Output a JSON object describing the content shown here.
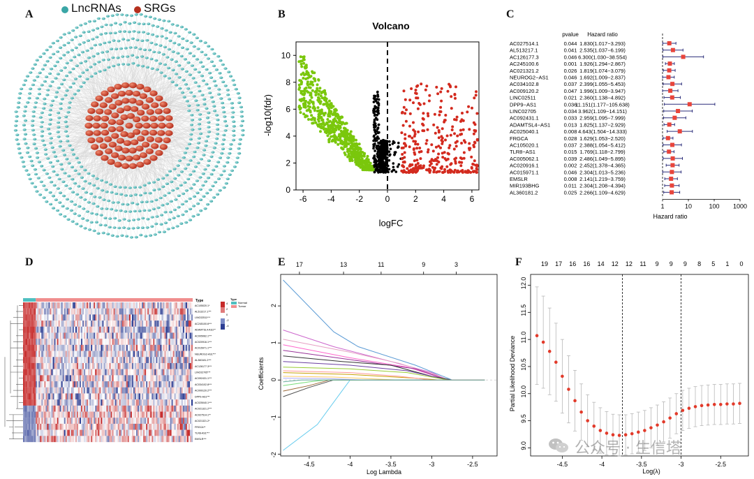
{
  "panel_labels": {
    "a": "A",
    "b": "B",
    "c": "C",
    "d": "D",
    "e": "E",
    "f": "F"
  },
  "colors": {
    "lnc": "#3aa6a6",
    "srg": "#b5301e",
    "green": "#7ac70c",
    "red": "#d32a1e",
    "black": "#000000",
    "hr_box": "#e8453c",
    "hr_line": "#2b2d7a",
    "cv_point": "#e23a2a",
    "cv_err": "#b8b8b8",
    "heat_red": "#c62b2b",
    "heat_blue": "#2d3e93",
    "normal": "#4fbfc0",
    "tumor": "#f08e8e"
  },
  "network": {
    "legend": [
      {
        "label": "LncRNAs",
        "color": "#3aa6a6"
      },
      {
        "label": "SRGs",
        "color": "#b5301e"
      }
    ]
  },
  "chart_data": [
    {
      "id": "B",
      "type": "scatter",
      "title": "Volcano",
      "xlabel": "logFC",
      "ylabel": "-log10(fdr)",
      "xlim": [
        -6.5,
        6.5
      ],
      "ylim": [
        0,
        11
      ],
      "xticks": [
        -6,
        -4,
        -2,
        0,
        2,
        4,
        6
      ],
      "yticks": [
        0,
        2,
        4,
        6,
        8,
        10
      ],
      "threshold_x": 0,
      "series": [
        {
          "group": "down",
          "color": "#7ac70c",
          "x_range": [
            -6.3,
            -1.0
          ],
          "y_range": [
            1.5,
            9.9
          ],
          "count": 750
        },
        {
          "group": "not_significant",
          "color": "#000000",
          "x_range": [
            -1.3,
            1.2
          ],
          "y_range": [
            1.3,
            7.5
          ],
          "count": 380
        },
        {
          "group": "up",
          "color": "#d32a1e",
          "x_range": [
            1.0,
            6.4
          ],
          "y_range": [
            1.3,
            7.9
          ],
          "count": 330
        }
      ]
    },
    {
      "id": "C",
      "type": "forest",
      "col_headers": {
        "pvalue": "pvalue",
        "hr": "Hazard ratio"
      },
      "xlabel": "Hazard ratio",
      "xscale": "log",
      "xlim": [
        0.1,
        1000
      ],
      "xticks": [
        1,
        10,
        100,
        1000
      ],
      "ref_line": 1,
      "rows": [
        {
          "gene": "AC027514.1",
          "p": "0.044",
          "hr_text": "1.830(1.017−3.293)",
          "hr": 1.83,
          "lo": 1.017,
          "hi": 3.293
        },
        {
          "gene": "AL513217.1",
          "p": "0.041",
          "hr_text": "2.535(1.037−6.199)",
          "hr": 2.535,
          "lo": 1.037,
          "hi": 6.199
        },
        {
          "gene": "AC126177.3",
          "p": "0.046",
          "hr_text": "6.300(1.030−38.554)",
          "hr": 6.3,
          "lo": 1.03,
          "hi": 38.554
        },
        {
          "gene": "AC245100.6",
          "p": "0.001",
          "hr_text": "1.926(1.294−2.867)",
          "hr": 1.926,
          "lo": 1.294,
          "hi": 2.867
        },
        {
          "gene": "AC021321.2",
          "p": "0.026",
          "hr_text": "1.819(1.074−3.079)",
          "hr": 1.819,
          "lo": 1.074,
          "hi": 3.079
        },
        {
          "gene": "NEUROG2−AS1",
          "p": "0.046",
          "hr_text": "1.692(1.009−2.837)",
          "hr": 1.692,
          "lo": 1.009,
          "hi": 2.837
        },
        {
          "gene": "AC034102.8",
          "p": "0.037",
          "hr_text": "2.399(1.055−5.453)",
          "hr": 2.399,
          "lo": 1.055,
          "hi": 5.453
        },
        {
          "gene": "AC009120.2",
          "p": "0.047",
          "hr_text": "1.996(1.009−3.947)",
          "hr": 1.996,
          "lo": 1.009,
          "hi": 3.947
        },
        {
          "gene": "LINC02511",
          "p": "0.021",
          "hr_text": "2.360(1.138−4.892)",
          "hr": 2.36,
          "lo": 1.138,
          "hi": 4.892
        },
        {
          "gene": "DPP9−AS1",
          "p": "0.036",
          "hr_text": "11.151(1.177−105.638)",
          "hr": 11.151,
          "lo": 1.177,
          "hi": 105.638
        },
        {
          "gene": "LINC02705",
          "p": "0.034",
          "hr_text": "3.962(1.109−14.151)",
          "hr": 3.962,
          "lo": 1.109,
          "hi": 14.151
        },
        {
          "gene": "AC092431.1",
          "p": "0.033",
          "hr_text": "2.959(1.095−7.999)",
          "hr": 2.959,
          "lo": 1.095,
          "hi": 7.999
        },
        {
          "gene": "ADAMTSL4−AS1",
          "p": "0.013",
          "hr_text": "1.825(1.137−2.929)",
          "hr": 1.825,
          "lo": 1.137,
          "hi": 2.929
        },
        {
          "gene": "AC025040.1",
          "p": "0.008",
          "hr_text": "4.643(1.504−14.333)",
          "hr": 4.643,
          "lo": 1.504,
          "hi": 14.333
        },
        {
          "gene": "FRGCA",
          "p": "0.028",
          "hr_text": "1.629(1.053−2.520)",
          "hr": 1.629,
          "lo": 1.053,
          "hi": 2.52
        },
        {
          "gene": "AC105020.1",
          "p": "0.037",
          "hr_text": "2.388(1.054−5.412)",
          "hr": 2.388,
          "lo": 1.054,
          "hi": 5.412
        },
        {
          "gene": "TLR8−AS1",
          "p": "0.015",
          "hr_text": "1.769(1.118−2.799)",
          "hr": 1.769,
          "lo": 1.118,
          "hi": 2.799
        },
        {
          "gene": "AC005062.1",
          "p": "0.039",
          "hr_text": "2.486(1.049−5.895)",
          "hr": 2.486,
          "lo": 1.049,
          "hi": 5.895
        },
        {
          "gene": "AC020916.1",
          "p": "0.002",
          "hr_text": "2.452(1.378−4.365)",
          "hr": 2.452,
          "lo": 1.378,
          "hi": 4.365
        },
        {
          "gene": "AC015971.1",
          "p": "0.046",
          "hr_text": "2.304(1.013−5.236)",
          "hr": 2.304,
          "lo": 1.013,
          "hi": 5.236
        },
        {
          "gene": "EMSLR",
          "p": "0.008",
          "hr_text": "2.141(1.219−3.759)",
          "hr": 2.141,
          "lo": 1.219,
          "hi": 3.759
        },
        {
          "gene": "MIR193BHG",
          "p": "0.011",
          "hr_text": "2.304(1.208−4.394)",
          "hr": 2.304,
          "lo": 1.208,
          "hi": 4.394
        },
        {
          "gene": "AL360181.2",
          "p": "0.025",
          "hr_text": "2.266(1.109−4.629)",
          "hr": 2.266,
          "lo": 1.109,
          "hi": 4.629
        }
      ]
    },
    {
      "id": "D",
      "type": "heatmap",
      "legend_title": "Type",
      "groups": [
        {
          "label": "Normal",
          "color": "#4fbfc0"
        },
        {
          "label": "Tumor",
          "color": "#f08e8e"
        }
      ],
      "scale_title": "Type",
      "scale_ticks": [
        "4",
        "2",
        "0",
        "-2",
        "-4"
      ],
      "row_labels": [
        "AC105020.1*",
        "AL513217.1***",
        "LINC02511***",
        "AC245100.6***",
        "ADAMTSL4-AS1**",
        "AC005062.1***",
        "AC020916.1***",
        "AC015971.1***",
        "NEUROG2-AS1***",
        "AL360181.2***",
        "AC126177.3***",
        "LINC02705***",
        "AC092431.1***",
        "AC034102.8***",
        "AC009120.2***",
        "DPP9-AS1***",
        "AC025040.1***",
        "AC021321.2***",
        "AC027514.1**",
        "AC021321.2*",
        "FRGCA**",
        "TLR8-AS1***",
        "EMSLR***"
      ]
    },
    {
      "id": "E",
      "type": "line",
      "xlabel": "Log Lambda",
      "ylabel": "Coefficients",
      "xlim": [
        -4.85,
        -2.2
      ],
      "ylim": [
        -2.05,
        2.85
      ],
      "xticks": [
        -4.5,
        -4.0,
        -3.5,
        -3.0,
        -2.5
      ],
      "yticks": [
        -2,
        -1,
        0,
        1,
        2
      ],
      "top_ticks": [
        {
          "x": -4.62,
          "label": "17"
        },
        {
          "x": -4.08,
          "label": "13"
        },
        {
          "x": -3.62,
          "label": "11"
        },
        {
          "x": -3.1,
          "label": "9"
        },
        {
          "x": -2.7,
          "label": "3"
        }
      ],
      "series": [
        {
          "color": "#5b9bd5",
          "points": [
            [
              -4.82,
              2.7
            ],
            [
              -4.2,
              1.3
            ],
            [
              -3.9,
              0.9
            ],
            [
              -3.2,
              0.4
            ],
            [
              -2.75,
              0.0
            ]
          ]
        },
        {
          "color": "#66ccee",
          "points": [
            [
              -4.82,
              -1.9
            ],
            [
              -4.4,
              -1.2
            ],
            [
              -4.1,
              -0.3
            ],
            [
              -4.0,
              0.0
            ]
          ]
        },
        {
          "color": "#cc66cc",
          "points": [
            [
              -4.82,
              1.35
            ],
            [
              -4.2,
              0.9
            ],
            [
              -3.5,
              0.5
            ],
            [
              -3.0,
              0.2
            ],
            [
              -2.8,
              0.0
            ]
          ]
        },
        {
          "color": "#e6a0c4",
          "points": [
            [
              -4.82,
              1.1
            ],
            [
              -4.0,
              0.75
            ],
            [
              -3.4,
              0.45
            ],
            [
              -2.9,
              0.1
            ],
            [
              -2.8,
              0.0
            ]
          ]
        },
        {
          "color": "#ff66cc",
          "points": [
            [
              -4.82,
              0.95
            ],
            [
              -4.0,
              0.6
            ],
            [
              -3.3,
              0.35
            ],
            [
              -2.8,
              0.0
            ]
          ]
        },
        {
          "color": "#993399",
          "points": [
            [
              -4.82,
              0.8
            ],
            [
              -4.0,
              0.55
            ],
            [
              -3.2,
              0.3
            ],
            [
              -2.8,
              0.0
            ]
          ]
        },
        {
          "color": "#333333",
          "points": [
            [
              -4.82,
              0.65
            ],
            [
              -4.1,
              0.5
            ],
            [
              -3.5,
              0.4
            ],
            [
              -3.0,
              0.1
            ],
            [
              -2.75,
              0.0
            ]
          ]
        },
        {
          "color": "#6b3fa0",
          "points": [
            [
              -4.82,
              0.5
            ],
            [
              -4.0,
              0.4
            ],
            [
              -3.3,
              0.25
            ],
            [
              -2.8,
              0.0
            ]
          ]
        },
        {
          "color": "#99cc33",
          "points": [
            [
              -4.82,
              0.35
            ],
            [
              -4.0,
              0.3
            ],
            [
              -3.3,
              0.2
            ],
            [
              -2.8,
              0.0
            ]
          ]
        },
        {
          "color": "#c8a000",
          "points": [
            [
              -4.82,
              0.2
            ],
            [
              -4.0,
              0.15
            ],
            [
              -3.2,
              0.05
            ],
            [
              -2.9,
              0.0
            ]
          ]
        },
        {
          "color": "#ffcc66",
          "points": [
            [
              -4.82,
              0.1
            ],
            [
              -4.2,
              0.08
            ],
            [
              -3.6,
              0.02
            ],
            [
              -3.4,
              0.0
            ]
          ]
        },
        {
          "color": "#4d4d4d",
          "points": [
            [
              -4.82,
              -0.45
            ],
            [
              -4.5,
              -0.2
            ],
            [
              -4.2,
              0.0
            ]
          ]
        },
        {
          "color": "#996633",
          "points": [
            [
              -4.82,
              -0.3
            ],
            [
              -4.5,
              -0.15
            ],
            [
              -4.25,
              0.0
            ]
          ]
        },
        {
          "color": "#77dd77",
          "points": [
            [
              -4.82,
              -0.15
            ],
            [
              -4.5,
              -0.05
            ],
            [
              -4.3,
              0.0
            ]
          ]
        },
        {
          "color": "#aaaaff",
          "points": [
            [
              -4.82,
              0.05
            ],
            [
              -4.3,
              0.04
            ],
            [
              -3.8,
              0.0
            ]
          ]
        },
        {
          "color": "#ff9999",
          "points": [
            [
              -4.82,
              0.25
            ],
            [
              -4.0,
              0.2
            ],
            [
              -3.4,
              0.1
            ],
            [
              -3.0,
              0.0
            ]
          ]
        },
        {
          "color": "#66aa99",
          "points": [
            [
              -4.82,
              -0.05
            ],
            [
              -4.6,
              0.0
            ]
          ]
        }
      ]
    },
    {
      "id": "F",
      "type": "scatter",
      "xlabel": "Log(λ)",
      "ylabel": "Partial Likelihood Deviance",
      "xlim": [
        -4.9,
        -2.15
      ],
      "ylim": [
        8.85,
        12.2
      ],
      "xticks": [
        -4.5,
        -4.0,
        -3.5,
        -3.0,
        -2.5
      ],
      "yticks": [
        9.0,
        9.5,
        10.0,
        10.5,
        11.0,
        11.5,
        12.0
      ],
      "top_ticks": [
        "19",
        "17",
        "16",
        "16",
        "14",
        "12",
        "12",
        "11",
        "9",
        "9",
        "9",
        "8",
        "5",
        "1",
        "0"
      ],
      "vlines": [
        -3.74,
        -3.0
      ],
      "points": [
        [
          -4.82,
          11.07,
          0.9
        ],
        [
          -4.74,
          10.95,
          0.85
        ],
        [
          -4.66,
          10.78,
          0.8
        ],
        [
          -4.58,
          10.58,
          0.72
        ],
        [
          -4.5,
          10.32,
          0.68
        ],
        [
          -4.42,
          10.08,
          0.62
        ],
        [
          -4.34,
          9.87,
          0.56
        ],
        [
          -4.26,
          9.66,
          0.52
        ],
        [
          -4.18,
          9.5,
          0.48
        ],
        [
          -4.1,
          9.4,
          0.44
        ],
        [
          -4.02,
          9.32,
          0.42
        ],
        [
          -3.94,
          9.27,
          0.4
        ],
        [
          -3.86,
          9.24,
          0.38
        ],
        [
          -3.78,
          9.23,
          0.38
        ],
        [
          -3.7,
          9.24,
          0.37
        ],
        [
          -3.62,
          9.26,
          0.37
        ],
        [
          -3.54,
          9.29,
          0.37
        ],
        [
          -3.46,
          9.32,
          0.37
        ],
        [
          -3.38,
          9.37,
          0.37
        ],
        [
          -3.3,
          9.42,
          0.37
        ],
        [
          -3.22,
          9.48,
          0.37
        ],
        [
          -3.14,
          9.55,
          0.37
        ],
        [
          -3.06,
          9.63,
          0.37
        ],
        [
          -2.98,
          9.69,
          0.37
        ],
        [
          -2.9,
          9.73,
          0.37
        ],
        [
          -2.82,
          9.76,
          0.37
        ],
        [
          -2.74,
          9.78,
          0.37
        ],
        [
          -2.66,
          9.79,
          0.37
        ],
        [
          -2.58,
          9.8,
          0.37
        ],
        [
          -2.5,
          9.8,
          0.37
        ],
        [
          -2.42,
          9.81,
          0.37
        ],
        [
          -2.34,
          9.81,
          0.37
        ],
        [
          -2.26,
          9.82,
          0.37
        ]
      ]
    }
  ],
  "watermark": {
    "text": "公众号 · 生信塔"
  }
}
